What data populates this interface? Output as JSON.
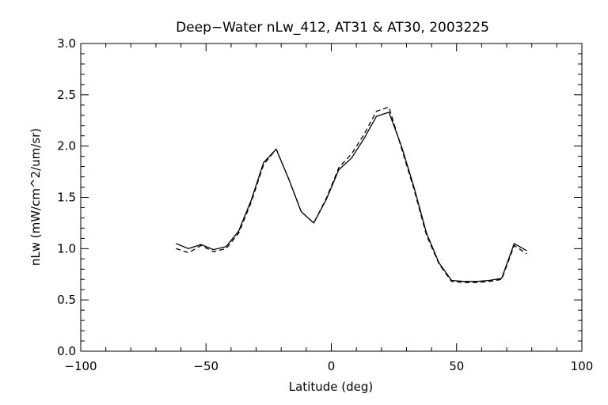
{
  "chart_data": {
    "type": "line",
    "title": "Deep−Water nLw_412, AT31 & AT30, 2003225",
    "xlabel": "Latitude (deg)",
    "ylabel": "nLw (mW/cm^2/um/sr)",
    "xlim": [
      -100,
      100
    ],
    "ylim": [
      0.0,
      3.0
    ],
    "x_ticks": [
      -100,
      -50,
      0,
      50,
      100
    ],
    "y_ticks": [
      0.0,
      0.5,
      1.0,
      1.5,
      2.0,
      2.5,
      3.0
    ],
    "x_tick_labels": [
      "−100",
      "−50",
      "0",
      "50",
      "100"
    ],
    "y_tick_labels": [
      "0.0",
      "0.5",
      "1.0",
      "1.5",
      "2.0",
      "2.5",
      "3.0"
    ],
    "grid": false,
    "legend": "none",
    "series": [
      {
        "style": "solid",
        "color": "#000000",
        "x": [
          -62,
          -57,
          -52,
          -47,
          -42,
          -37,
          -32,
          -27,
          -22,
          -17,
          -12,
          -7,
          -2,
          3,
          8,
          13,
          18,
          23,
          28,
          33,
          38,
          43,
          48,
          53,
          58,
          63,
          68,
          73,
          78
        ],
        "y": [
          1.05,
          1.0,
          1.04,
          0.99,
          1.02,
          1.17,
          1.47,
          1.84,
          1.97,
          1.68,
          1.36,
          1.25,
          1.48,
          1.77,
          1.88,
          2.07,
          2.29,
          2.33,
          2.0,
          1.6,
          1.15,
          0.86,
          0.69,
          0.68,
          0.68,
          0.69,
          0.71,
          1.05,
          0.98
        ]
      },
      {
        "style": "dashed",
        "color": "#000000",
        "x": [
          -62,
          -57,
          -52,
          -47,
          -42,
          -37,
          -32,
          -27,
          -22,
          -17,
          -12,
          -7,
          -2,
          3,
          8,
          13,
          18,
          23,
          28,
          33,
          38,
          43,
          48,
          53,
          58,
          63,
          68,
          73,
          78
        ],
        "y": [
          1.0,
          0.96,
          1.03,
          0.97,
          1.0,
          1.15,
          1.45,
          1.82,
          1.97,
          1.68,
          1.36,
          1.25,
          1.49,
          1.79,
          1.92,
          2.11,
          2.34,
          2.38,
          1.98,
          1.58,
          1.13,
          0.85,
          0.68,
          0.67,
          0.67,
          0.68,
          0.7,
          1.03,
          0.95
        ]
      }
    ]
  }
}
